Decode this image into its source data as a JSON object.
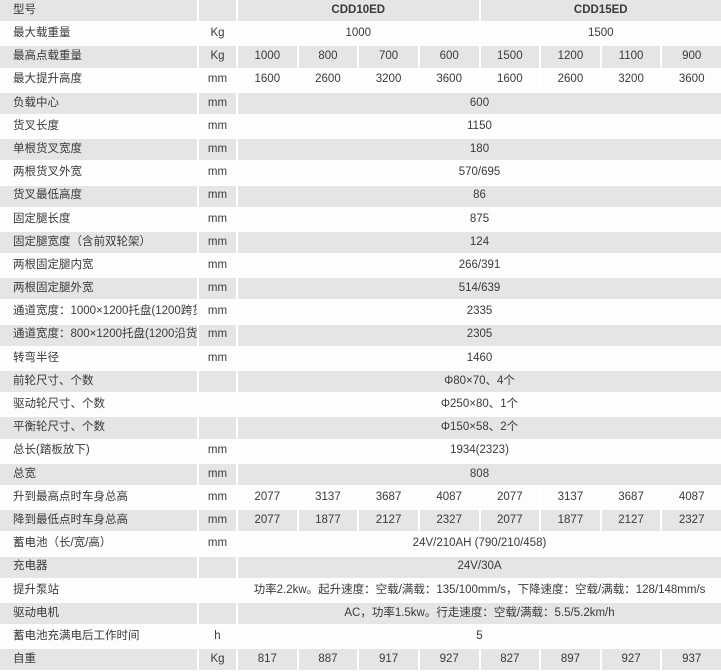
{
  "colors": {
    "row_shade": "#e5e5e5",
    "row_plain": "#fdfdfd",
    "text": "#3a3a3a",
    "divider": "#ffffff"
  },
  "table": {
    "model_header_label": "型号",
    "models": [
      "CDD10ED",
      "CDD15ED"
    ],
    "rows": [
      {
        "label": "型号",
        "unit": "",
        "cells": [
          {
            "text": "CDD10ED",
            "span": 4
          },
          {
            "text": "CDD15ED",
            "span": 4
          }
        ]
      },
      {
        "label": "最大载重量",
        "unit": "Kg",
        "cells": [
          {
            "text": "1000",
            "span": 4
          },
          {
            "text": "1500",
            "span": 4
          }
        ]
      },
      {
        "label": "最高点载重量",
        "unit": "Kg",
        "cells": [
          {
            "text": "1000",
            "span": 1
          },
          {
            "text": "800",
            "span": 1
          },
          {
            "text": "700",
            "span": 1
          },
          {
            "text": "600",
            "span": 1
          },
          {
            "text": "1500",
            "span": 1
          },
          {
            "text": "1200",
            "span": 1
          },
          {
            "text": "1100",
            "span": 1
          },
          {
            "text": "900",
            "span": 1
          }
        ]
      },
      {
        "label": "最大提升高度",
        "unit": "mm",
        "cells": [
          {
            "text": "1600",
            "span": 1
          },
          {
            "text": "2600",
            "span": 1
          },
          {
            "text": "3200",
            "span": 1
          },
          {
            "text": "3600",
            "span": 1
          },
          {
            "text": "1600",
            "span": 1
          },
          {
            "text": "2600",
            "span": 1
          },
          {
            "text": "3200",
            "span": 1
          },
          {
            "text": "3600",
            "span": 1
          }
        ]
      },
      {
        "label": "负载中心",
        "unit": "mm",
        "cells": [
          {
            "text": "600",
            "span": 8
          }
        ]
      },
      {
        "label": "货叉长度",
        "unit": "mm",
        "cells": [
          {
            "text": "1150",
            "span": 8
          }
        ]
      },
      {
        "label": "单根货叉宽度",
        "unit": "mm",
        "cells": [
          {
            "text": "180",
            "span": 8
          }
        ]
      },
      {
        "label": "两根货叉外宽",
        "unit": "mm",
        "cells": [
          {
            "text": "570/695",
            "span": 8
          }
        ]
      },
      {
        "label": "货叉最低高度",
        "unit": "mm",
        "cells": [
          {
            "text": "86",
            "span": 8
          }
        ]
      },
      {
        "label": "固定腿长度",
        "unit": "mm",
        "cells": [
          {
            "text": "875",
            "span": 8
          }
        ]
      },
      {
        "label": "固定腿宽度（含前双轮架）",
        "unit": "mm",
        "cells": [
          {
            "text": "124",
            "span": 8
          }
        ]
      },
      {
        "label": "两根固定腿内宽",
        "unit": "mm",
        "cells": [
          {
            "text": "266/391",
            "span": 8
          }
        ]
      },
      {
        "label": "两根固定腿外宽",
        "unit": "mm",
        "cells": [
          {
            "text": "514/639",
            "span": 8
          }
        ]
      },
      {
        "label": "通道宽度：1000×1200托盘(1200跨货叉放置)",
        "unit": "mm",
        "cells": [
          {
            "text": "2335",
            "span": 8
          }
        ]
      },
      {
        "label": "通道宽度：800×1200托盘(1200沿货叉放置)",
        "unit": "mm",
        "cells": [
          {
            "text": "2305",
            "span": 8
          }
        ]
      },
      {
        "label": "转弯半径",
        "unit": "mm",
        "cells": [
          {
            "text": "1460",
            "span": 8
          }
        ]
      },
      {
        "label": "前轮尺寸、个数",
        "unit": "",
        "cells": [
          {
            "text": "Φ80×70、4个",
            "span": 8
          }
        ]
      },
      {
        "label": "驱动轮尺寸、个数",
        "unit": "",
        "cells": [
          {
            "text": "Φ250×80、1个",
            "span": 8
          }
        ]
      },
      {
        "label": "平衡轮尺寸、个数",
        "unit": "",
        "cells": [
          {
            "text": "Φ150×58、2个",
            "span": 8
          }
        ]
      },
      {
        "label": "总长(踏板放下)",
        "unit": "mm",
        "cells": [
          {
            "text": "1934(2323)",
            "span": 8
          }
        ]
      },
      {
        "label": "总宽",
        "unit": "mm",
        "cells": [
          {
            "text": "808",
            "span": 8
          }
        ]
      },
      {
        "label": "升到最高点时车身总高",
        "unit": "mm",
        "cells": [
          {
            "text": "2077",
            "span": 1
          },
          {
            "text": "3137",
            "span": 1
          },
          {
            "text": "3687",
            "span": 1
          },
          {
            "text": "4087",
            "span": 1
          },
          {
            "text": "2077",
            "span": 1
          },
          {
            "text": "3137",
            "span": 1
          },
          {
            "text": "3687",
            "span": 1
          },
          {
            "text": "4087",
            "span": 1
          }
        ]
      },
      {
        "label": "降到最低点时车身总高",
        "unit": "mm",
        "cells": [
          {
            "text": "2077",
            "span": 1
          },
          {
            "text": "1877",
            "span": 1
          },
          {
            "text": "2127",
            "span": 1
          },
          {
            "text": "2327",
            "span": 1
          },
          {
            "text": "2077",
            "span": 1
          },
          {
            "text": "1877",
            "span": 1
          },
          {
            "text": "2127",
            "span": 1
          },
          {
            "text": "2327",
            "span": 1
          }
        ]
      },
      {
        "label": "蓄电池（长/宽/高）",
        "unit": "mm",
        "cells": [
          {
            "text": "24V/210AH (790/210/458)",
            "span": 8
          }
        ]
      },
      {
        "label": "充电器",
        "unit": "",
        "cells": [
          {
            "text": "24V/30A",
            "span": 8
          }
        ]
      },
      {
        "label": "提升泵站",
        "unit": "",
        "cells": [
          {
            "text": "功率2.2kw。起升速度：空载/满载：135/100mm/s，下降速度：空载/满载：128/148mm/s",
            "span": 8
          }
        ]
      },
      {
        "label": "驱动电机",
        "unit": "",
        "cells": [
          {
            "text": "AC，功率1.5kw。行走速度：空载/满载：5.5/5.2km/h",
            "span": 8
          }
        ]
      },
      {
        "label": "蓄电池充满电后工作时间",
        "unit": "h",
        "cells": [
          {
            "text": "5",
            "span": 8
          }
        ]
      },
      {
        "label": "自重",
        "unit": "Kg",
        "cells": [
          {
            "text": "817",
            "span": 1
          },
          {
            "text": "887",
            "span": 1
          },
          {
            "text": "917",
            "span": 1
          },
          {
            "text": "927",
            "span": 1
          },
          {
            "text": "827",
            "span": 1
          },
          {
            "text": "897",
            "span": 1
          },
          {
            "text": "927",
            "span": 1
          },
          {
            "text": "937",
            "span": 1
          }
        ]
      }
    ]
  }
}
